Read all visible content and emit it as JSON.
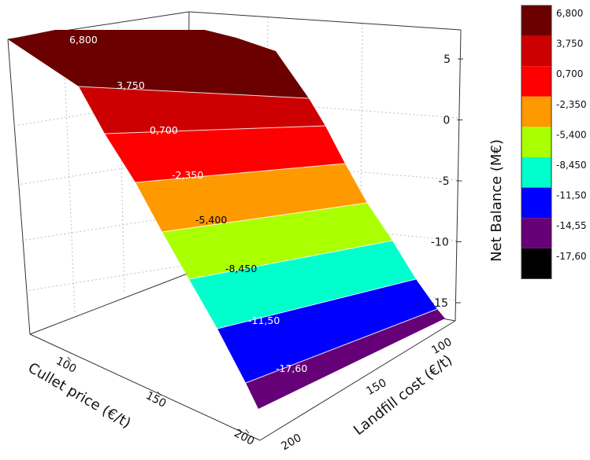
{
  "chart_data": {
    "type": "surface-3d-contour",
    "x_axis": {
      "label": "Cullet price (€/t)",
      "ticks": [
        100,
        150,
        200
      ]
    },
    "y_axis": {
      "label": "Landfill cost (€/t)",
      "ticks": [
        100,
        150,
        200
      ]
    },
    "z_axis": {
      "label": "Net Balance (M€)",
      "ticks": [
        5,
        0,
        -5,
        -10,
        -15
      ],
      "range": [
        -17.6,
        6.8
      ]
    },
    "levels": [
      "6,800",
      "3,750",
      "0,700",
      "-2,350",
      "-5,400",
      "-8,450",
      "-11,50",
      "-14,55",
      "-17,60"
    ],
    "band_colors": [
      "#6b0000",
      "#cc0000",
      "#ff0000",
      "#ff9900",
      "#aaff00",
      "#00ffcc",
      "#0000ff",
      "#660077",
      "#000000"
    ],
    "surface_band_labels": [
      "6,800",
      "3,750",
      "0,700",
      "-2,350",
      "-5,400",
      "-8,450",
      "-11,50",
      "-17,60"
    ],
    "surface_band_label_colors": [
      "#ffffff",
      "#ffffff",
      "#ffffff",
      "#ffffff",
      "#000000",
      "#000000",
      "#ffffff",
      "#ffffff"
    ]
  }
}
